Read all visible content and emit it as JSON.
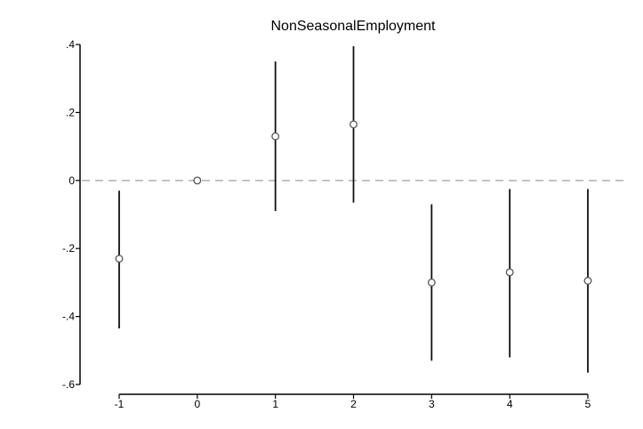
{
  "chart_data": {
    "type": "scatter",
    "title": "NonSeasonalEmployment",
    "xlabel": "",
    "ylabel": "",
    "x": [
      -1,
      0,
      1,
      2,
      3,
      4,
      5
    ],
    "y": [
      -0.23,
      0.0,
      0.13,
      0.165,
      -0.3,
      -0.27,
      -0.295
    ],
    "ci_low": [
      -0.435,
      0.0,
      -0.09,
      -0.065,
      -0.53,
      -0.52,
      -0.565
    ],
    "ci_high": [
      -0.03,
      0.0,
      0.35,
      0.395,
      -0.07,
      -0.025,
      -0.025
    ],
    "ylim": [
      -0.6,
      0.4
    ],
    "xlim": [
      -1,
      5
    ],
    "yticks": [
      0.4,
      0.2,
      0,
      -0.2,
      -0.4,
      -0.6
    ],
    "ytick_labels": [
      ".4",
      ".2",
      "0",
      "-.2",
      "-.4",
      "-.6"
    ],
    "xticks": [
      -1,
      0,
      1,
      2,
      3,
      4,
      5
    ],
    "xtick_labels": [
      "-1",
      "0",
      "1",
      "2",
      "3",
      "4",
      "5"
    ],
    "reference_line": {
      "y": 0,
      "style": "dashed",
      "color": "#aaaaaa"
    },
    "grid": false,
    "colors": {
      "marker": "#555555",
      "ci": "#111111",
      "axis": "#000000"
    }
  }
}
